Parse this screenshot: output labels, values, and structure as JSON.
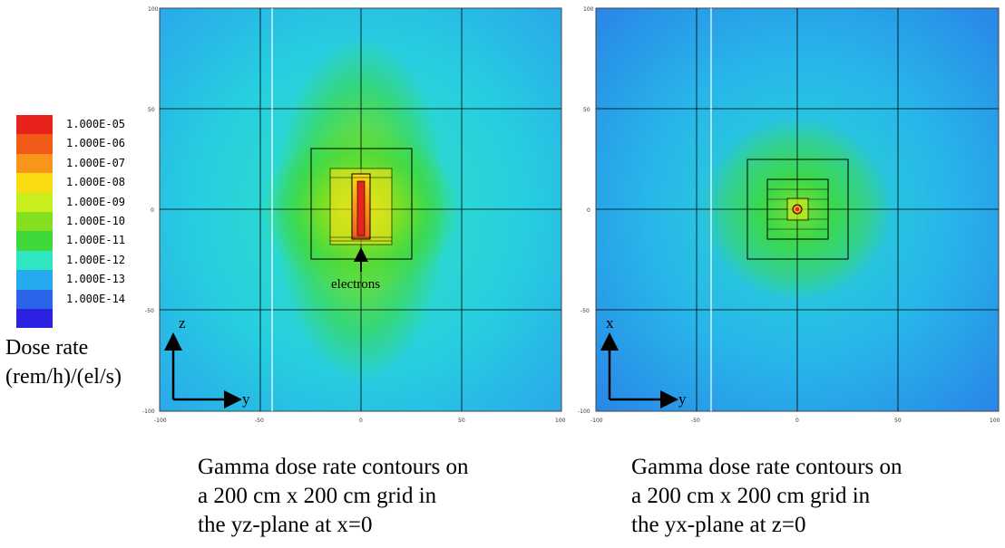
{
  "legend": {
    "items": [
      {
        "label": "1.000E-05",
        "color": "#e8231b"
      },
      {
        "label": "1.000E-06",
        "color": "#f25a1a"
      },
      {
        "label": "1.000E-07",
        "color": "#f9951a"
      },
      {
        "label": "1.000E-08",
        "color": "#f9dd12"
      },
      {
        "label": "1.000E-09",
        "color": "#c8ee1e"
      },
      {
        "label": "1.000E-10",
        "color": "#84e01e"
      },
      {
        "label": "1.000E-11",
        "color": "#3ed83a"
      },
      {
        "label": "1.000E-12",
        "color": "#2ee6c0"
      },
      {
        "label": "1.000E-13",
        "color": "#25a9ef"
      },
      {
        "label": "1.000E-14",
        "color": "#2a64e8"
      },
      {
        "label": "",
        "color": "#2a22e0"
      }
    ],
    "title_line1": "Dose rate",
    "title_line2": "(rem/h)/(el/s)"
  },
  "plots": [
    {
      "ticks_x": [
        "-100",
        "-50",
        "0",
        "50",
        "100"
      ],
      "ticks_y": [
        "100",
        "50",
        "0",
        "-50",
        "-100"
      ],
      "axis_up_label": "z",
      "axis_right_label": "y",
      "annotation": "electrons",
      "caption": [
        "Gamma dose rate contours on",
        "a 200 cm x 200 cm grid in",
        "the yz-plane at x=0"
      ]
    },
    {
      "ticks_x": [
        "-100",
        "-50",
        "0",
        "50",
        "100"
      ],
      "ticks_y": [
        "100",
        "50",
        "0",
        "-50",
        "-100"
      ],
      "axis_up_label": "x",
      "axis_right_label": "y",
      "caption": [
        "Gamma dose rate contours on",
        "a 200 cm x 200 cm grid in",
        "the yx-plane at z=0"
      ]
    }
  ]
}
